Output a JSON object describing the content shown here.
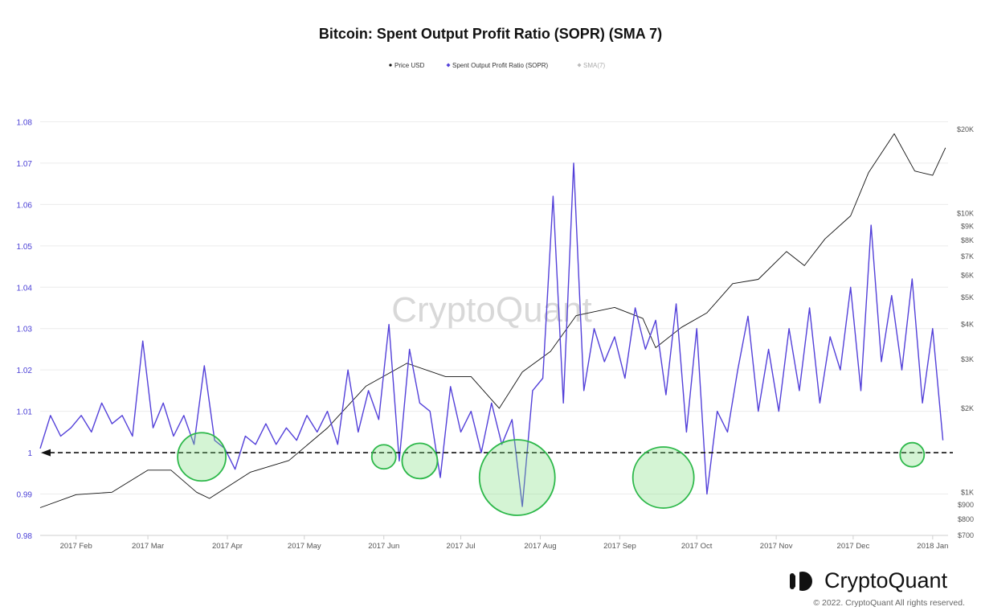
{
  "chart_data": {
    "type": "line",
    "title": "Bitcoin: Spent Output Profit Ratio (SOPR) (SMA 7)",
    "legend": {
      "placement": "top-center",
      "entries": [
        {
          "name": "Price USD",
          "color": "#111111"
        },
        {
          "name": "Spent Output Profit Ratio (SOPR)",
          "color": "#5340d9"
        },
        {
          "name": "SMA(7)",
          "color": "#bbbbbb"
        }
      ]
    },
    "x_ticks": [
      "2017 Feb",
      "2017 Mar",
      "2017 Apr",
      "2017 May",
      "2017 Jun",
      "2017 Jul",
      "2017 Aug",
      "2017 Sep",
      "2017 Oct",
      "2017 Nov",
      "2017 Dec",
      "2018 Jan"
    ],
    "x_range": [
      "2017-01-18",
      "2018-01-07"
    ],
    "y_left": {
      "ticks": [
        "0.98",
        "0.99",
        "1",
        "1.01",
        "1.02",
        "1.03",
        "1.04",
        "1.05",
        "1.06",
        "1.07",
        "1.08"
      ],
      "range": [
        0.98,
        1.09
      ]
    },
    "y_right": {
      "scale": "log",
      "ticks": [
        "$700",
        "$800",
        "$900",
        "$1K",
        "$2K",
        "$3K",
        "$4K",
        "$5K",
        "$6K",
        "$7K",
        "$8K",
        "$9K",
        "$10K",
        "$20K"
      ],
      "range": [
        700,
        30000
      ]
    },
    "reference_line": {
      "y": 1.0,
      "style": "dashed-arrow"
    },
    "series": [
      {
        "name": "Spent Output Profit Ratio (SOPR)",
        "axis": "left",
        "x": [
          "2017-01-18",
          "2017-01-22",
          "2017-01-26",
          "2017-01-30",
          "2017-02-03",
          "2017-02-07",
          "2017-02-11",
          "2017-02-15",
          "2017-02-19",
          "2017-02-23",
          "2017-02-27",
          "2017-03-03",
          "2017-03-07",
          "2017-03-11",
          "2017-03-15",
          "2017-03-19",
          "2017-03-23",
          "2017-03-27",
          "2017-03-31",
          "2017-04-04",
          "2017-04-08",
          "2017-04-12",
          "2017-04-16",
          "2017-04-20",
          "2017-04-24",
          "2017-04-28",
          "2017-05-02",
          "2017-05-06",
          "2017-05-10",
          "2017-05-14",
          "2017-05-18",
          "2017-05-22",
          "2017-05-26",
          "2017-05-30",
          "2017-06-03",
          "2017-06-07",
          "2017-06-11",
          "2017-06-15",
          "2017-06-19",
          "2017-06-23",
          "2017-06-27",
          "2017-07-01",
          "2017-07-05",
          "2017-07-09",
          "2017-07-13",
          "2017-07-17",
          "2017-07-21",
          "2017-07-25",
          "2017-07-29",
          "2017-08-02",
          "2017-08-06",
          "2017-08-10",
          "2017-08-14",
          "2017-08-18",
          "2017-08-22",
          "2017-08-26",
          "2017-08-30",
          "2017-09-03",
          "2017-09-07",
          "2017-09-11",
          "2017-09-15",
          "2017-09-19",
          "2017-09-23",
          "2017-09-27",
          "2017-10-01",
          "2017-10-05",
          "2017-10-09",
          "2017-10-13",
          "2017-10-17",
          "2017-10-21",
          "2017-10-25",
          "2017-10-29",
          "2017-11-02",
          "2017-11-06",
          "2017-11-10",
          "2017-11-14",
          "2017-11-18",
          "2017-11-22",
          "2017-11-26",
          "2017-11-30",
          "2017-12-04",
          "2017-12-08",
          "2017-12-12",
          "2017-12-16",
          "2017-12-20",
          "2017-12-24",
          "2017-12-28",
          "2018-01-01",
          "2018-01-05"
        ],
        "values": [
          1.001,
          1.009,
          1.004,
          1.006,
          1.009,
          1.005,
          1.012,
          1.007,
          1.009,
          1.004,
          1.027,
          1.006,
          1.012,
          1.004,
          1.009,
          1.002,
          1.021,
          1.003,
          1.001,
          0.996,
          1.004,
          1.002,
          1.007,
          1.002,
          1.006,
          1.003,
          1.009,
          1.005,
          1.01,
          1.002,
          1.02,
          1.005,
          1.015,
          1.008,
          1.031,
          0.998,
          1.025,
          1.012,
          1.01,
          0.994,
          1.016,
          1.005,
          1.01,
          1.0,
          1.012,
          1.002,
          1.008,
          0.987,
          1.015,
          1.018,
          1.062,
          1.012,
          1.07,
          1.015,
          1.03,
          1.022,
          1.028,
          1.018,
          1.035,
          1.025,
          1.032,
          1.014,
          1.036,
          1.005,
          1.03,
          0.99,
          1.01,
          1.005,
          1.02,
          1.033,
          1.01,
          1.025,
          1.01,
          1.03,
          1.015,
          1.035,
          1.012,
          1.028,
          1.02,
          1.04,
          1.015,
          1.055,
          1.022,
          1.038,
          1.02,
          1.042,
          1.012,
          1.03,
          1.003
        ]
      },
      {
        "name": "Price USD",
        "axis": "right",
        "x": [
          "2017-01-18",
          "2017-02-01",
          "2017-02-15",
          "2017-03-01",
          "2017-03-10",
          "2017-03-20",
          "2017-03-25",
          "2017-04-10",
          "2017-04-25",
          "2017-05-10",
          "2017-05-25",
          "2017-06-10",
          "2017-06-25",
          "2017-07-05",
          "2017-07-16",
          "2017-07-25",
          "2017-08-05",
          "2017-08-15",
          "2017-08-30",
          "2017-09-10",
          "2017-09-15",
          "2017-09-25",
          "2017-10-05",
          "2017-10-15",
          "2017-10-25",
          "2017-11-05",
          "2017-11-12",
          "2017-11-20",
          "2017-11-30",
          "2017-12-07",
          "2017-12-17",
          "2017-12-25",
          "2018-01-01",
          "2018-01-06"
        ],
        "values": [
          880,
          980,
          1000,
          1200,
          1200,
          1000,
          950,
          1180,
          1300,
          1700,
          2400,
          2900,
          2600,
          2600,
          2000,
          2700,
          3200,
          4300,
          4600,
          4200,
          3300,
          3900,
          4400,
          5600,
          5800,
          7300,
          6500,
          8100,
          9800,
          14000,
          19300,
          14200,
          13700,
          17200
        ]
      }
    ],
    "highlights": [
      {
        "x": "2017-03-22",
        "y": 0.999
      },
      {
        "x": "2017-06-01",
        "y": 0.999
      },
      {
        "x": "2017-06-15",
        "y": 0.998
      },
      {
        "x": "2017-07-23",
        "y": 0.994
      },
      {
        "x": "2017-09-18",
        "y": 0.994
      },
      {
        "x": "2017-12-24",
        "y": 0.9995
      }
    ],
    "watermark": "CryptoQuant"
  },
  "footer": {
    "brand": "CryptoQuant",
    "copyright": "© 2022. CryptoQuant All rights reserved."
  }
}
